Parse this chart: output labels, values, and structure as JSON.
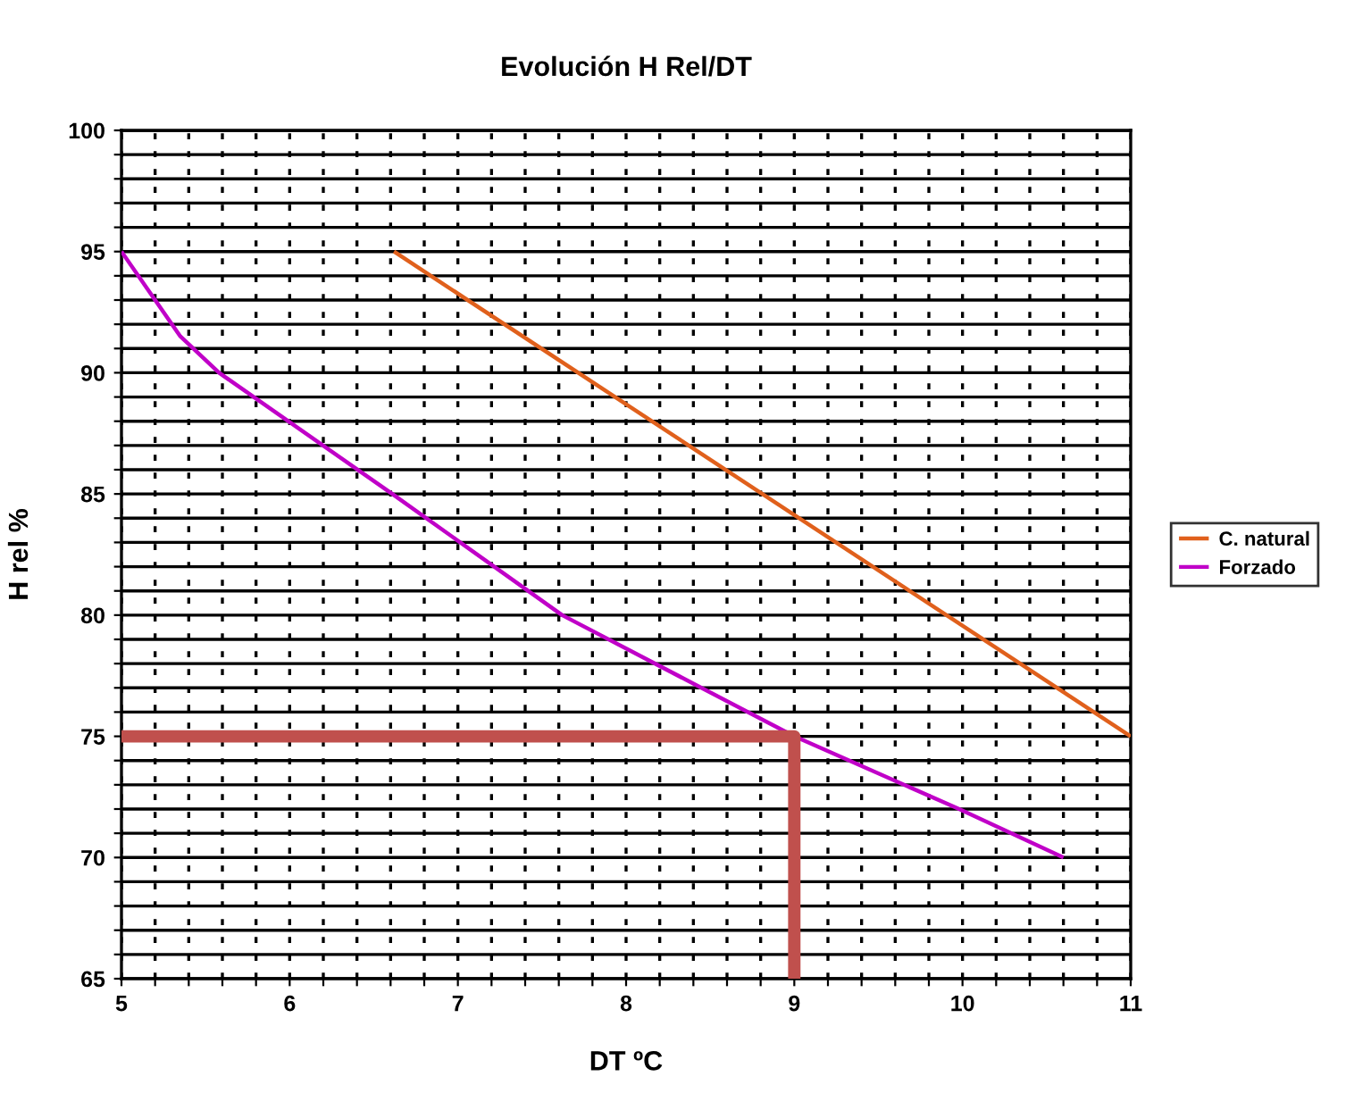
{
  "chart_data": {
    "type": "line",
    "title": "Evolución H Rel/DT",
    "xlabel": "DT ºC",
    "ylabel": "H rel %",
    "series": [
      {
        "name": "C. natural",
        "color": "#e0601c",
        "x": [
          6.62,
          11
        ],
        "values": [
          95,
          75
        ]
      },
      {
        "name": "Forzado",
        "color": "#c000c8",
        "x": [
          5,
          5.2,
          5.35,
          5.58,
          6.61,
          7.62,
          9,
          9.98,
          10.6
        ],
        "values": [
          95,
          93,
          91.5,
          90,
          85,
          80,
          75,
          72,
          70
        ]
      },
      {
        "color": "#c0504d",
        "x": [
          5,
          9,
          9
        ],
        "values": [
          75,
          75,
          65
        ]
      }
    ],
    "xlim": [
      5,
      11
    ],
    "ylim": [
      65,
      100
    ],
    "xticks": [
      5,
      {
        "value": 5.2,
        "label": null
      },
      {
        "value": 5.4,
        "label": null
      },
      {
        "value": 5.6,
        "label": null
      },
      {
        "value": 5.8,
        "label": null
      },
      6,
      {
        "value": 6.2,
        "label": null
      },
      {
        "value": 6.4,
        "label": null
      },
      {
        "value": 6.6,
        "label": null
      },
      {
        "value": 6.8,
        "label": null
      },
      7,
      {
        "value": 7.2,
        "label": null
      },
      {
        "value": 7.4,
        "label": null
      },
      {
        "value": 7.6,
        "label": null
      },
      {
        "value": 7.8,
        "label": null
      },
      8,
      {
        "value": 8.2,
        "label": null
      },
      {
        "value": 8.4,
        "label": null
      },
      {
        "value": 8.6,
        "label": null
      },
      {
        "value": 8.8,
        "label": null
      },
      9,
      {
        "value": 9.2,
        "label": null
      },
      {
        "value": 9.4,
        "label": null
      },
      {
        "value": 9.6,
        "label": null
      },
      {
        "value": 9.8,
        "label": null
      },
      10,
      {
        "value": 10.2,
        "label": null
      },
      {
        "value": 10.4,
        "label": null
      },
      {
        "value": 10.6,
        "label": null
      },
      {
        "value": 10.8,
        "label": null
      },
      11
    ],
    "yticks": [
      65,
      {
        "value": 66,
        "label": null
      },
      {
        "value": 67,
        "label": null
      },
      {
        "value": 68,
        "label": null
      },
      {
        "value": 69,
        "label": null
      },
      70,
      {
        "value": 71,
        "label": null
      },
      {
        "value": 72,
        "label": null
      },
      {
        "value": 73,
        "label": null
      },
      {
        "value": 74,
        "label": null
      },
      75,
      {
        "value": 76,
        "label": null
      },
      {
        "value": 77,
        "label": null
      },
      {
        "value": 78,
        "label": null
      },
      {
        "value": 79,
        "label": null
      },
      80,
      {
        "value": 81,
        "label": null
      },
      {
        "value": 82,
        "label": null
      },
      {
        "value": 83,
        "label": null
      },
      {
        "value": 84,
        "label": null
      },
      85,
      {
        "value": 86,
        "label": null
      },
      {
        "value": 87,
        "label": null
      },
      {
        "value": 88,
        "label": null
      },
      {
        "value": 89,
        "label": null
      },
      90,
      {
        "value": 91,
        "label": null
      },
      {
        "value": 92,
        "label": null
      },
      {
        "value": 93,
        "label": null
      },
      {
        "value": 94,
        "label": null
      },
      95,
      {
        "value": 96,
        "label": null
      },
      {
        "value": 97,
        "label": null
      },
      {
        "value": 98,
        "label": null
      },
      {
        "value": 99,
        "label": null
      },
      100
    ],
    "grid": true,
    "legend": "right"
  }
}
